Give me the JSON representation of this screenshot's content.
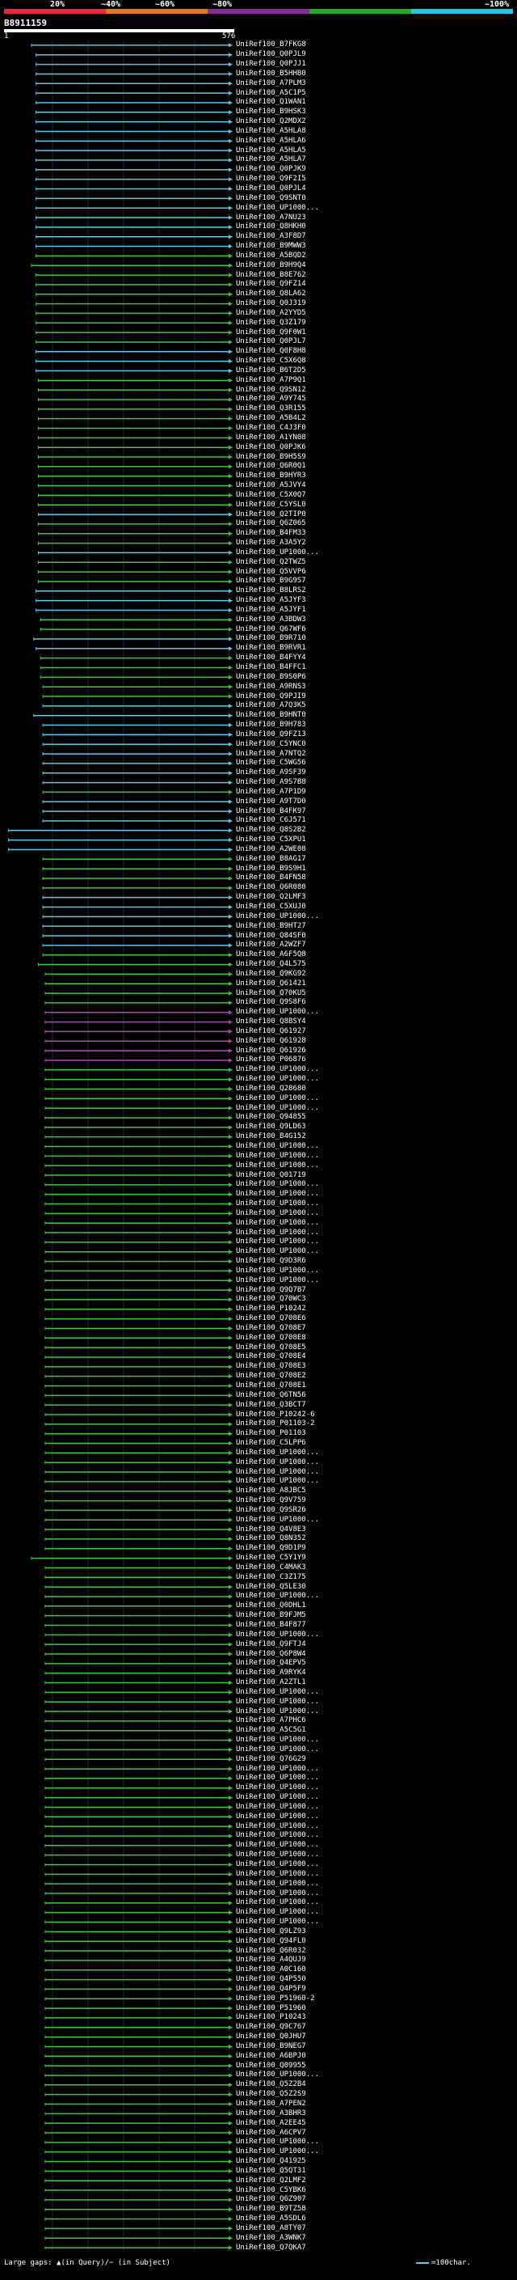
{
  "scale": {
    "ticks": [
      "20%",
      "~40%",
      "~60%",
      "~80%",
      "~100%"
    ],
    "colors": [
      "#e8283a",
      "#e87818",
      "#8a2a9a",
      "#22aa22",
      "#22c8e8"
    ]
  },
  "query": {
    "id": "B8911159",
    "start": "1",
    "end": "576"
  },
  "legend": {
    "gaps": "Large gaps: ▲(in Query)/− (in Subject)",
    "key": "=100char."
  },
  "hits": [
    {
      "id": "UniRef100_B7FKG8",
      "c": "cyan",
      "s": 0.12
    },
    {
      "id": "UniRef100_Q0PJL9",
      "c": "cyan",
      "s": 0.14
    },
    {
      "id": "UniRef100_Q0PJJ1",
      "c": "cyan",
      "s": 0.14
    },
    {
      "id": "UniRef100_B5HHB0",
      "c": "cyan",
      "s": 0.14
    },
    {
      "id": "UniRef100_A7PLM3",
      "c": "cyan",
      "s": 0.14
    },
    {
      "id": "UniRef100_A5C1P5",
      "c": "cyan",
      "s": 0.14
    },
    {
      "id": "UniRef100_Q1WAN1",
      "c": "cyan",
      "s": 0.14
    },
    {
      "id": "UniRef100_B9HSK3",
      "c": "cyan",
      "s": 0.14
    },
    {
      "id": "UniRef100_Q2MDX2",
      "c": "cyan",
      "s": 0.14
    },
    {
      "id": "UniRef100_A5HLA8",
      "c": "cyan",
      "s": 0.14
    },
    {
      "id": "UniRef100_A5HLA6",
      "c": "cyan",
      "s": 0.14
    },
    {
      "id": "UniRef100_A5HLA5",
      "c": "cyan",
      "s": 0.14
    },
    {
      "id": "UniRef100_A5HLA7",
      "c": "cyan",
      "s": 0.14
    },
    {
      "id": "UniRef100_Q0PJK9",
      "c": "cyan",
      "s": 0.14
    },
    {
      "id": "UniRef100_Q9F2I5",
      "c": "cyan",
      "s": 0.14
    },
    {
      "id": "UniRef100_Q0PJL4",
      "c": "cyan",
      "s": 0.14
    },
    {
      "id": "UniRef100_Q9SNT0",
      "c": "cyan",
      "s": 0.14
    },
    {
      "id": "UniRef100_UP1000...",
      "c": "cyan",
      "s": 0.14
    },
    {
      "id": "UniRef100_A7NU23",
      "c": "cyan",
      "s": 0.14
    },
    {
      "id": "UniRef100_Q8HKH0",
      "c": "cyan",
      "s": 0.14
    },
    {
      "id": "UniRef100_A3F8D7",
      "c": "cyan",
      "s": 0.14
    },
    {
      "id": "UniRef100_B9MWW3",
      "c": "cyan",
      "s": 0.14
    },
    {
      "id": "UniRef100_A5BQD2",
      "c": "green",
      "s": 0.14
    },
    {
      "id": "UniRef100_B9H9Q4",
      "c": "green",
      "s": 0.12
    },
    {
      "id": "UniRef100_B8E762",
      "c": "green",
      "s": 0.14
    },
    {
      "id": "UniRef100_Q9FZ14",
      "c": "green",
      "s": 0.14
    },
    {
      "id": "UniRef100_Q8LA62",
      "c": "green",
      "s": 0.14
    },
    {
      "id": "UniRef100_Q0J319",
      "c": "green",
      "s": 0.14
    },
    {
      "id": "UniRef100_A2YYD5",
      "c": "green",
      "s": 0.14
    },
    {
      "id": "UniRef100_Q3Z179",
      "c": "green",
      "s": 0.14
    },
    {
      "id": "UniRef100_Q9F0W1",
      "c": "green",
      "s": 0.14
    },
    {
      "id": "UniRef100_Q0PJL7",
      "c": "green",
      "s": 0.14
    },
    {
      "id": "UniRef100_Q0F8H8",
      "c": "cyan",
      "s": 0.14
    },
    {
      "id": "UniRef100_C5X6Q8",
      "c": "cyan",
      "s": 0.14
    },
    {
      "id": "UniRef100_B6T2D5",
      "c": "cyan",
      "s": 0.14
    },
    {
      "id": "UniRef100_A7P9Q1",
      "c": "green",
      "s": 0.15
    },
    {
      "id": "UniRef100_Q9SN12",
      "c": "green",
      "s": 0.15
    },
    {
      "id": "UniRef100_A9Y745",
      "c": "green",
      "s": 0.15
    },
    {
      "id": "UniRef100_Q3R155",
      "c": "green",
      "s": 0.15
    },
    {
      "id": "UniRef100_A5B4L2",
      "c": "green",
      "s": 0.15
    },
    {
      "id": "UniRef100_C4J3F0",
      "c": "green",
      "s": 0.15
    },
    {
      "id": "UniRef100_A1YN08",
      "c": "green",
      "s": 0.15
    },
    {
      "id": "UniRef100_Q0PJK6",
      "c": "green",
      "s": 0.15
    },
    {
      "id": "UniRef100_B9H5S9",
      "c": "green",
      "s": 0.15
    },
    {
      "id": "UniRef100_Q6R0Q1",
      "c": "green",
      "s": 0.15
    },
    {
      "id": "UniRef100_B9HYR3",
      "c": "green",
      "s": 0.15
    },
    {
      "id": "UniRef100_A5JVY4",
      "c": "green",
      "s": 0.15
    },
    {
      "id": "UniRef100_C5X0Q7",
      "c": "green",
      "s": 0.15
    },
    {
      "id": "UniRef100_C5YSL0",
      "c": "green",
      "s": 0.15
    },
    {
      "id": "UniRef100_Q2TIP0",
      "c": "cyan",
      "s": 0.15
    },
    {
      "id": "UniRef100_Q6Z065",
      "c": "green",
      "s": 0.15
    },
    {
      "id": "UniRef100_B4FM33",
      "c": "green",
      "s": 0.15
    },
    {
      "id": "UniRef100_A3A5Y2",
      "c": "green",
      "s": 0.15
    },
    {
      "id": "UniRef100_UP1000...",
      "c": "cyan",
      "s": 0.15
    },
    {
      "id": "UniRef100_Q2TWZ5",
      "c": "green",
      "s": 0.15
    },
    {
      "id": "UniRef100_Q5VVP6",
      "c": "green",
      "s": 0.15
    },
    {
      "id": "UniRef100_B9G9S7",
      "c": "green",
      "s": 0.15
    },
    {
      "id": "UniRef100_B8LRS2",
      "c": "cyan",
      "s": 0.14
    },
    {
      "id": "UniRef100_A5JYF3",
      "c": "cyan",
      "s": 0.14
    },
    {
      "id": "UniRef100_A5JYF1",
      "c": "cyan",
      "s": 0.14
    },
    {
      "id": "UniRef100_A3BDW3",
      "c": "green",
      "s": 0.16
    },
    {
      "id": "UniRef100_Q67WF6",
      "c": "green",
      "s": 0.16
    },
    {
      "id": "UniRef100_B9R710",
      "c": "cyan",
      "s": 0.13
    },
    {
      "id": "UniRef100_B9RVR1",
      "c": "cyan",
      "s": 0.14
    },
    {
      "id": "UniRef100_B4FYY4",
      "c": "green",
      "s": 0.16
    },
    {
      "id": "UniRef100_B4FFC1",
      "c": "green",
      "s": 0.16
    },
    {
      "id": "UniRef100_B9S0P6",
      "c": "green",
      "s": 0.16
    },
    {
      "id": "UniRef100_A9RNS3",
      "c": "green",
      "s": 0.17
    },
    {
      "id": "UniRef100_Q9PJI9",
      "c": "green",
      "s": 0.17
    },
    {
      "id": "UniRef100_A7Q3K5",
      "c": "cyan",
      "s": 0.17
    },
    {
      "id": "UniRef100_B9HNT0",
      "c": "cyan",
      "s": 0.13
    },
    {
      "id": "UniRef100_B9H783",
      "c": "cyan",
      "s": 0.17
    },
    {
      "id": "UniRef100_Q9FZ13",
      "c": "cyan",
      "s": 0.17
    },
    {
      "id": "UniRef100_C5YNC0",
      "c": "cyan",
      "s": 0.17
    },
    {
      "id": "UniRef100_A7NTQ2",
      "c": "cyan",
      "s": 0.17
    },
    {
      "id": "UniRef100_C5WG56",
      "c": "cyan",
      "s": 0.17
    },
    {
      "id": "UniRef100_A9SF39",
      "c": "cyan",
      "s": 0.17
    },
    {
      "id": "UniRef100_A9S7B8",
      "c": "cyan",
      "s": 0.17
    },
    {
      "id": "UniRef100_A7P1D9",
      "c": "green",
      "s": 0.17
    },
    {
      "id": "UniRef100_A9T7D0",
      "c": "cyan",
      "s": 0.17
    },
    {
      "id": "UniRef100_B4FK97",
      "c": "cyan",
      "s": 0.17
    },
    {
      "id": "UniRef100_C6J571",
      "c": "cyan",
      "s": 0.17
    },
    {
      "id": "UniRef100_Q8S2B2",
      "c": "cyan",
      "s": 0.02
    },
    {
      "id": "UniRef100_C5XPU1",
      "c": "cyan",
      "s": 0.02
    },
    {
      "id": "UniRef100_A2WE08",
      "c": "cyan",
      "s": 0.02
    },
    {
      "id": "UniRef100_B8AG17",
      "c": "green",
      "s": 0.17
    },
    {
      "id": "UniRef100_B9S9H1",
      "c": "green",
      "s": 0.17
    },
    {
      "id": "UniRef100_B4FN58",
      "c": "green",
      "s": 0.17
    },
    {
      "id": "UniRef100_Q6R080",
      "c": "green",
      "s": 0.17
    },
    {
      "id": "UniRef100_Q2LMF3",
      "c": "cyan",
      "s": 0.17
    },
    {
      "id": "UniRef100_C5XUJ0",
      "c": "cyan",
      "s": 0.17
    },
    {
      "id": "UniRef100_UP1000...",
      "c": "cyan",
      "s": 0.17
    },
    {
      "id": "UniRef100_B9HT27",
      "c": "cyan",
      "s": 0.17
    },
    {
      "id": "UniRef100_Q84SF0",
      "c": "cyan",
      "s": 0.17
    },
    {
      "id": "UniRef100_A2WZF7",
      "c": "cyan",
      "s": 0.17
    },
    {
      "id": "UniRef100_A6F5Q8",
      "c": "green",
      "s": 0.17
    },
    {
      "id": "UniRef100_Q4L575",
      "c": "green",
      "s": 0.15
    },
    {
      "id": "UniRef100_Q9KG92",
      "c": "green",
      "s": 0.18
    },
    {
      "id": "UniRef100_Q61421",
      "c": "green",
      "s": 0.18
    },
    {
      "id": "UniRef100_Q70KU5",
      "c": "green",
      "s": 0.18
    },
    {
      "id": "UniRef100_Q9S8F6",
      "c": "green",
      "s": 0.18
    },
    {
      "id": "UniRef100_UP1000...",
      "c": "magenta",
      "s": 0.18
    },
    {
      "id": "UniRef100_Q8BSY4",
      "c": "magenta",
      "s": 0.18
    },
    {
      "id": "UniRef100_Q61927",
      "c": "magenta",
      "s": 0.18
    },
    {
      "id": "UniRef100_Q61928",
      "c": "magenta",
      "s": 0.18
    },
    {
      "id": "UniRef100_Q61926",
      "c": "magenta",
      "s": 0.18
    },
    {
      "id": "UniRef100_P06876",
      "c": "magenta",
      "s": 0.18
    },
    {
      "id": "UniRef100_UP1000...",
      "c": "green",
      "s": 0.18
    },
    {
      "id": "UniRef100_UP1000...",
      "c": "green",
      "s": 0.18
    },
    {
      "id": "UniRef100_Q28680",
      "c": "green",
      "s": 0.18
    },
    {
      "id": "UniRef100_UP1000...",
      "c": "green",
      "s": 0.18
    },
    {
      "id": "UniRef100_UP1000...",
      "c": "green",
      "s": 0.18
    },
    {
      "id": "UniRef100_Q94855",
      "c": "green",
      "s": 0.18
    },
    {
      "id": "UniRef100_Q9LD63",
      "c": "green",
      "s": 0.18
    },
    {
      "id": "UniRef100_B4G152",
      "c": "green",
      "s": 0.18
    },
    {
      "id": "UniRef100_UP1000...",
      "c": "green",
      "s": 0.18
    },
    {
      "id": "UniRef100_UP1000...",
      "c": "green",
      "s": 0.18
    },
    {
      "id": "UniRef100_UP1000...",
      "c": "green",
      "s": 0.18
    },
    {
      "id": "UniRef100_Q01719",
      "c": "green",
      "s": 0.18
    },
    {
      "id": "UniRef100_UP1000...",
      "c": "green",
      "s": 0.18
    },
    {
      "id": "UniRef100_UP1000...",
      "c": "green",
      "s": 0.18
    },
    {
      "id": "UniRef100_UP1000...",
      "c": "green",
      "s": 0.18
    },
    {
      "id": "UniRef100_UP1000...",
      "c": "green",
      "s": 0.18
    },
    {
      "id": "UniRef100_UP1000...",
      "c": "green",
      "s": 0.18
    },
    {
      "id": "UniRef100_UP1000...",
      "c": "green",
      "s": 0.18
    },
    {
      "id": "UniRef100_UP1000...",
      "c": "green",
      "s": 0.18
    },
    {
      "id": "UniRef100_UP1000...",
      "c": "green",
      "s": 0.18
    },
    {
      "id": "UniRef100_Q9D3R6",
      "c": "green",
      "s": 0.18
    },
    {
      "id": "UniRef100_UP1000...",
      "c": "green",
      "s": 0.18
    },
    {
      "id": "UniRef100_UP1000...",
      "c": "green",
      "s": 0.18
    },
    {
      "id": "UniRef100_Q9Q7B7",
      "c": "green",
      "s": 0.18
    },
    {
      "id": "UniRef100_Q70WC3",
      "c": "green",
      "s": 0.18
    },
    {
      "id": "UniRef100_P10242",
      "c": "green",
      "s": 0.18
    },
    {
      "id": "UniRef100_Q708E6",
      "c": "green",
      "s": 0.18
    },
    {
      "id": "UniRef100_Q708E7",
      "c": "green",
      "s": 0.18
    },
    {
      "id": "UniRef100_Q708E8",
      "c": "green",
      "s": 0.18
    },
    {
      "id": "UniRef100_Q708E5",
      "c": "green",
      "s": 0.18
    },
    {
      "id": "UniRef100_Q708E4",
      "c": "green",
      "s": 0.18
    },
    {
      "id": "UniRef100_Q708E3",
      "c": "green",
      "s": 0.18
    },
    {
      "id": "UniRef100_Q708E2",
      "c": "green",
      "s": 0.18
    },
    {
      "id": "UniRef100_Q708E1",
      "c": "green",
      "s": 0.18
    },
    {
      "id": "UniRef100_Q6TN56",
      "c": "green",
      "s": 0.18
    },
    {
      "id": "UniRef100_Q3BCT7",
      "c": "green",
      "s": 0.18
    },
    {
      "id": "UniRef100_P10242-6",
      "c": "green",
      "s": 0.18
    },
    {
      "id": "UniRef100_P01103-2",
      "c": "green",
      "s": 0.18
    },
    {
      "id": "UniRef100_P01103",
      "c": "green",
      "s": 0.18
    },
    {
      "id": "UniRef100_C5LPP6",
      "c": "green",
      "s": 0.18
    },
    {
      "id": "UniRef100_UP1000...",
      "c": "green",
      "s": 0.18
    },
    {
      "id": "UniRef100_UP1000...",
      "c": "green",
      "s": 0.18
    },
    {
      "id": "UniRef100_UP1000...",
      "c": "green",
      "s": 0.18
    },
    {
      "id": "UniRef100_UP1000...",
      "c": "green",
      "s": 0.18
    },
    {
      "id": "UniRef100_A8JBC5",
      "c": "green",
      "s": 0.18
    },
    {
      "id": "UniRef100_Q9V759",
      "c": "green",
      "s": 0.18
    },
    {
      "id": "UniRef100_Q9SR26",
      "c": "green",
      "s": 0.18
    },
    {
      "id": "UniRef100_UP1000...",
      "c": "green",
      "s": 0.18
    },
    {
      "id": "UniRef100_Q4V8E3",
      "c": "green",
      "s": 0.18
    },
    {
      "id": "UniRef100_Q8N352",
      "c": "green",
      "s": 0.18
    },
    {
      "id": "UniRef100_Q9D1P9",
      "c": "green",
      "s": 0.18
    },
    {
      "id": "UniRef100_C5Y1Y9",
      "c": "green",
      "s": 0.12
    },
    {
      "id": "UniRef100_C4MAK3",
      "c": "green",
      "s": 0.18
    },
    {
      "id": "UniRef100_C3Z175",
      "c": "green",
      "s": 0.18
    },
    {
      "id": "UniRef100_Q5LE30",
      "c": "green",
      "s": 0.18
    },
    {
      "id": "UniRef100_UP1000...",
      "c": "green",
      "s": 0.18
    },
    {
      "id": "UniRef100_Q0DHL1",
      "c": "green",
      "s": 0.18
    },
    {
      "id": "UniRef100_B9FJM5",
      "c": "green",
      "s": 0.18
    },
    {
      "id": "UniRef100_B4F877",
      "c": "green",
      "s": 0.18
    },
    {
      "id": "UniRef100_UP1000...",
      "c": "green",
      "s": 0.18
    },
    {
      "id": "UniRef100_Q9FTJ4",
      "c": "green",
      "s": 0.18
    },
    {
      "id": "UniRef100_Q6P8W4",
      "c": "green",
      "s": 0.18
    },
    {
      "id": "UniRef100_Q4EPV5",
      "c": "green",
      "s": 0.18
    },
    {
      "id": "UniRef100_A9RYK4",
      "c": "green",
      "s": 0.18
    },
    {
      "id": "UniRef100_A2ZTL1",
      "c": "green",
      "s": 0.18
    },
    {
      "id": "UniRef100_UP1000...",
      "c": "green",
      "s": 0.18
    },
    {
      "id": "UniRef100_UP1000...",
      "c": "green",
      "s": 0.18
    },
    {
      "id": "UniRef100_UP1000...",
      "c": "green",
      "s": 0.18
    },
    {
      "id": "UniRef100_A7PHC6",
      "c": "green",
      "s": 0.18
    },
    {
      "id": "UniRef100_A5C5G1",
      "c": "green",
      "s": 0.18
    },
    {
      "id": "UniRef100_UP1000...",
      "c": "green",
      "s": 0.18
    },
    {
      "id": "UniRef100_UP1000...",
      "c": "green",
      "s": 0.18
    },
    {
      "id": "UniRef100_Q76G29",
      "c": "green",
      "s": 0.18
    },
    {
      "id": "UniRef100_UP1000...",
      "c": "green",
      "s": 0.18
    },
    {
      "id": "UniRef100_UP1000...",
      "c": "green",
      "s": 0.18
    },
    {
      "id": "UniRef100_UP1000...",
      "c": "green",
      "s": 0.18
    },
    {
      "id": "UniRef100_UP1000...",
      "c": "green",
      "s": 0.18
    },
    {
      "id": "UniRef100_UP1000...",
      "c": "green",
      "s": 0.18
    },
    {
      "id": "UniRef100_UP1000...",
      "c": "green",
      "s": 0.18
    },
    {
      "id": "UniRef100_UP1000...",
      "c": "green",
      "s": 0.18
    },
    {
      "id": "UniRef100_UP1000...",
      "c": "green",
      "s": 0.18
    },
    {
      "id": "UniRef100_UP1000...",
      "c": "green",
      "s": 0.18
    },
    {
      "id": "UniRef100_UP1000...",
      "c": "green",
      "s": 0.18
    },
    {
      "id": "UniRef100_UP1000...",
      "c": "green",
      "s": 0.18
    },
    {
      "id": "UniRef100_UP1000...",
      "c": "green",
      "s": 0.18
    },
    {
      "id": "UniRef100_UP1000...",
      "c": "green",
      "s": 0.18
    },
    {
      "id": "UniRef100_UP1000...",
      "c": "green",
      "s": 0.18
    },
    {
      "id": "UniRef100_UP1000...",
      "c": "green",
      "s": 0.18
    },
    {
      "id": "UniRef100_UP1000...",
      "c": "green",
      "s": 0.18
    },
    {
      "id": "UniRef100_UP1000...",
      "c": "green",
      "s": 0.18
    },
    {
      "id": "UniRef100_Q9LZ93",
      "c": "green",
      "s": 0.18
    },
    {
      "id": "UniRef100_Q94FL0",
      "c": "green",
      "s": 0.18
    },
    {
      "id": "UniRef100_Q6R032",
      "c": "green",
      "s": 0.18
    },
    {
      "id": "UniRef100_A4QUJ9",
      "c": "green",
      "s": 0.18
    },
    {
      "id": "UniRef100_A0C160",
      "c": "green",
      "s": 0.18
    },
    {
      "id": "UniRef100_Q4P550",
      "c": "green",
      "s": 0.18
    },
    {
      "id": "UniRef100_Q4P5F9",
      "c": "green",
      "s": 0.18
    },
    {
      "id": "UniRef100_P51960-2",
      "c": "green",
      "s": 0.18
    },
    {
      "id": "UniRef100_P51960",
      "c": "green",
      "s": 0.18
    },
    {
      "id": "UniRef100_P10243",
      "c": "green",
      "s": 0.18
    },
    {
      "id": "UniRef100_Q9C767",
      "c": "green",
      "s": 0.18
    },
    {
      "id": "UniRef100_Q0JHU7",
      "c": "green",
      "s": 0.18
    },
    {
      "id": "UniRef100_B9NEG7",
      "c": "green",
      "s": 0.18
    },
    {
      "id": "UniRef100_A6BPJ0",
      "c": "green",
      "s": 0.18
    },
    {
      "id": "UniRef100_Q09955",
      "c": "green",
      "s": 0.18
    },
    {
      "id": "UniRef100_UP1000...",
      "c": "green",
      "s": 0.18
    },
    {
      "id": "UniRef100_Q5Z2B4",
      "c": "green",
      "s": 0.18
    },
    {
      "id": "UniRef100_Q5Z2S9",
      "c": "green",
      "s": 0.18
    },
    {
      "id": "UniRef100_A7PEN2",
      "c": "green",
      "s": 0.18
    },
    {
      "id": "UniRef100_A3BHR3",
      "c": "green",
      "s": 0.18
    },
    {
      "id": "UniRef100_A2EE45",
      "c": "green",
      "s": 0.18
    },
    {
      "id": "UniRef100_A6CPV7",
      "c": "green",
      "s": 0.18
    },
    {
      "id": "UniRef100_UP1000...",
      "c": "green",
      "s": 0.18
    },
    {
      "id": "UniRef100_UP1000...",
      "c": "green",
      "s": 0.18
    },
    {
      "id": "UniRef100_Q41925",
      "c": "green",
      "s": 0.18
    },
    {
      "id": "UniRef100_Q5QT31",
      "c": "green",
      "s": 0.18
    },
    {
      "id": "UniRef100_Q2LMF2",
      "c": "green",
      "s": 0.18
    },
    {
      "id": "UniRef100_C5YBK6",
      "c": "green",
      "s": 0.18
    },
    {
      "id": "UniRef100_Q6Z907",
      "c": "green",
      "s": 0.18
    },
    {
      "id": "UniRef100_B9TZ58",
      "c": "green",
      "s": 0.18
    },
    {
      "id": "UniRef100_A5SDL6",
      "c": "green",
      "s": 0.18
    },
    {
      "id": "UniRef100_A8TY07",
      "c": "green",
      "s": 0.18
    },
    {
      "id": "UniRef100_A3WNK7",
      "c": "green",
      "s": 0.18
    },
    {
      "id": "UniRef100_Q7QKA7",
      "c": "green",
      "s": 0.18
    }
  ]
}
